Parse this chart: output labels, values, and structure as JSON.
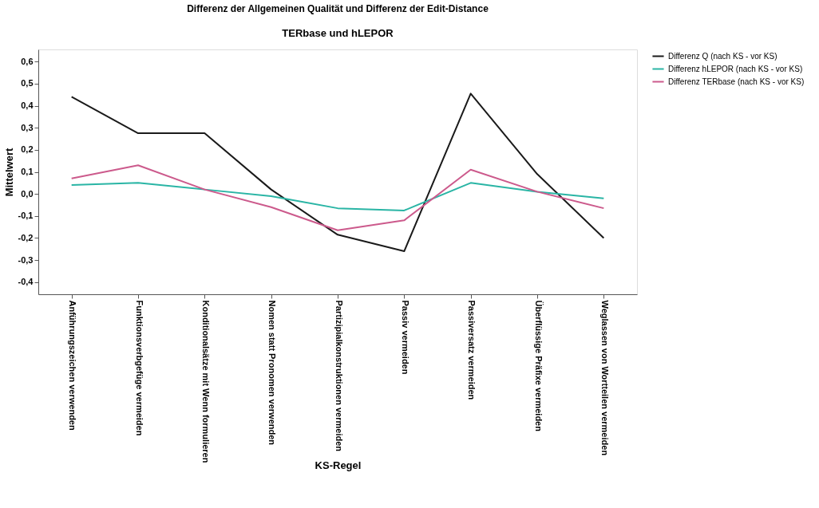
{
  "chart_data": {
    "type": "line",
    "title": "Differenz der Allgemeinen Qualität und Differenz der Edit-Distance",
    "subtitle": "TERbase und hLEPOR",
    "xlabel": "KS-Regel",
    "ylabel": "Mittelwert",
    "categories": [
      "Anführungszeichen verwenden",
      "Funktionsverbgefüge vermeiden",
      "Konditionalsätze mit Wenn formulieren",
      "Nomen statt Pronomen verwenden",
      "Partizipialkonstruktionen vermeiden",
      "Passiv vermeiden",
      "Passiversatz vermeiden",
      "Überflüssige Präfixe vermeiden",
      "Weglassen von Wortteilen vermeiden"
    ],
    "series": [
      {
        "name": "Differenz Q (nach KS - vor KS)",
        "color": "#1a1a1a",
        "values": [
          0.44,
          0.275,
          0.275,
          0.02,
          -0.185,
          -0.26,
          0.455,
          0.09,
          -0.2
        ]
      },
      {
        "name": "Differenz hLEPOR (nach KS - vor KS)",
        "color": "#2ab5a5",
        "values": [
          0.04,
          0.05,
          0.02,
          -0.01,
          -0.065,
          -0.075,
          0.05,
          0.01,
          -0.02
        ]
      },
      {
        "name": "Differenz TERbase (nach KS - vor KS)",
        "color": "#cc5a8c",
        "values": [
          0.07,
          0.13,
          0.02,
          -0.06,
          -0.165,
          -0.12,
          0.11,
          0.01,
          -0.065
        ]
      }
    ],
    "ylim": [
      -0.455,
      0.655
    ],
    "yticks": [
      {
        "value": -0.4,
        "label": "-0,4"
      },
      {
        "value": -0.3,
        "label": "-0,3"
      },
      {
        "value": -0.2,
        "label": "-0,2"
      },
      {
        "value": -0.1,
        "label": "-0,1"
      },
      {
        "value": 0,
        "label": "0,0"
      },
      {
        "value": 0.1,
        "label": "0,1"
      },
      {
        "value": 0.2,
        "label": "0,2"
      },
      {
        "value": 0.3,
        "label": "0,3"
      },
      {
        "value": 0.4,
        "label": "0,4"
      },
      {
        "value": 0.5,
        "label": "0,5"
      },
      {
        "value": 0.6,
        "label": "0,6"
      }
    ],
    "grid": false,
    "legend": "top right",
    "marker": "none",
    "line_style": "solid"
  }
}
